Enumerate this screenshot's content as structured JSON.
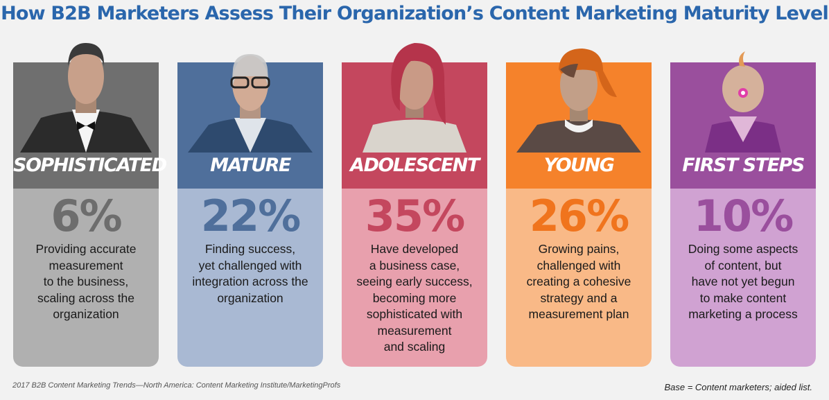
{
  "title": "How B2B Marketers Assess Their Organization’s Content Marketing Maturity Level",
  "chart_data": {
    "type": "bar",
    "title": "How B2B Marketers Assess Their Organization’s Content Marketing Maturity Level",
    "categories": [
      "SOPHISTICATED",
      "MATURE",
      "ADOLESCENT",
      "YOUNG",
      "FIRST STEPS"
    ],
    "values": [
      6,
      22,
      35,
      26,
      10
    ],
    "value_labels": [
      "6%",
      "22%",
      "35%",
      "26%",
      "10%"
    ],
    "descriptions": [
      [
        "Providing accurate",
        "measurement",
        "to the business,",
        "scaling across the",
        "organization"
      ],
      [
        "Finding success,",
        "yet challenged with",
        "integration across the",
        "organization"
      ],
      [
        "Have developed",
        "a business case,",
        "seeing early success,",
        "becoming more",
        "sophisticated with",
        "measurement",
        "and scaling"
      ],
      [
        "Growing pains,",
        "challenged with",
        "creating a cohesive",
        "strategy and a",
        "measurement plan"
      ],
      [
        "Doing some aspects",
        "of content, but",
        "have not yet begun",
        "to make content",
        "marketing a process"
      ]
    ],
    "colors": {
      "top": [
        "#6f6f6f",
        "#4f6f9b",
        "#c4475e",
        "#f5822b",
        "#9a4f9d"
      ],
      "bottom": [
        "#b0b0b0",
        "#a9b9d3",
        "#e8a0ad",
        "#f9b987",
        "#d0a2d2"
      ],
      "number": [
        "#6d6d6d",
        "#4f6f9b",
        "#c4475e",
        "#f0741d",
        "#9a4f9d"
      ]
    }
  },
  "footer": {
    "source": "2017 B2B Content Marketing Trends—North America: Content Marketing Institute/MarketingProfs",
    "base": "Base = Content marketers; aided list."
  }
}
